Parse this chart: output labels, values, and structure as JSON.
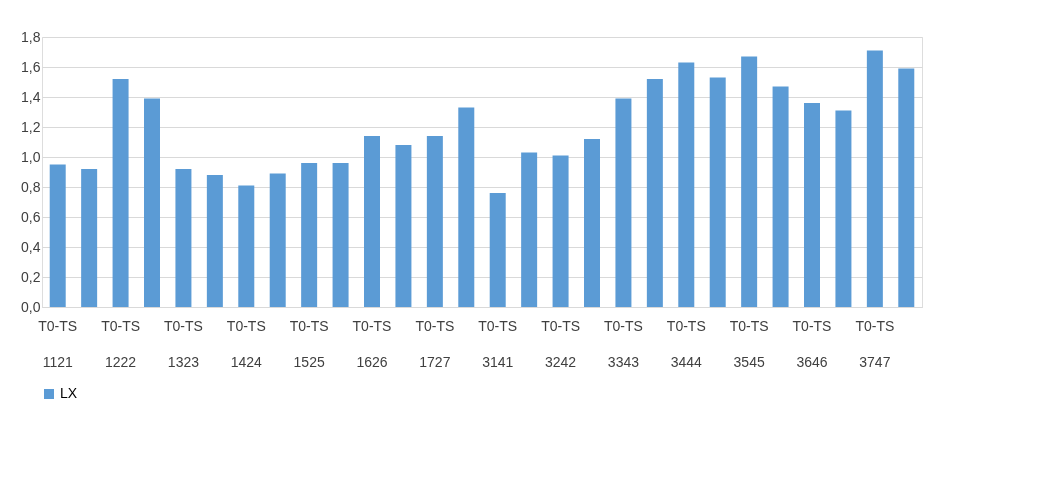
{
  "chart_data": {
    "type": "bar",
    "categories": [
      "T0-TS 1121",
      null,
      "T0-TS 1222",
      null,
      "T0-TS 1323",
      null,
      "T0-TS 1424",
      null,
      "T0-TS 1525",
      null,
      "T0-TS 1626",
      null,
      "T0-TS 1727",
      null,
      "T0-TS 3141",
      null,
      "T0-TS 3242",
      null,
      "T0-TS 3343",
      null,
      "T0-TS 3444",
      null,
      "T0-TS 3545",
      null,
      "T0-TS 3646",
      null,
      "T0-TS 3747",
      null
    ],
    "series": [
      {
        "name": "LX",
        "color": "#5b9bd5",
        "values": [
          0.95,
          0.92,
          1.52,
          1.39,
          0.92,
          0.88,
          0.81,
          0.89,
          0.96,
          0.96,
          1.14,
          1.08,
          1.14,
          1.33,
          0.76,
          1.03,
          1.01,
          1.12,
          1.39,
          1.52,
          1.63,
          1.53,
          1.67,
          1.47,
          1.36,
          1.31,
          1.71,
          1.59
        ]
      }
    ],
    "ylim": [
      0,
      1.8
    ],
    "yticks": [
      {
        "value": 0,
        "label": "0,0"
      },
      {
        "value": 0.2,
        "label": "0,2"
      },
      {
        "value": 0.4,
        "label": "0,4"
      },
      {
        "value": 0.6,
        "label": "0,6"
      },
      {
        "value": 0.8,
        "label": "0,8"
      },
      {
        "value": 1.0,
        "label": "1,0"
      },
      {
        "value": 1.2,
        "label": "1,2"
      },
      {
        "value": 1.4,
        "label": "1,4"
      },
      {
        "value": 1.6,
        "label": "1,6"
      },
      {
        "value": 1.8,
        "label": "1,8"
      }
    ],
    "grid": "y",
    "legend": "bottom"
  }
}
